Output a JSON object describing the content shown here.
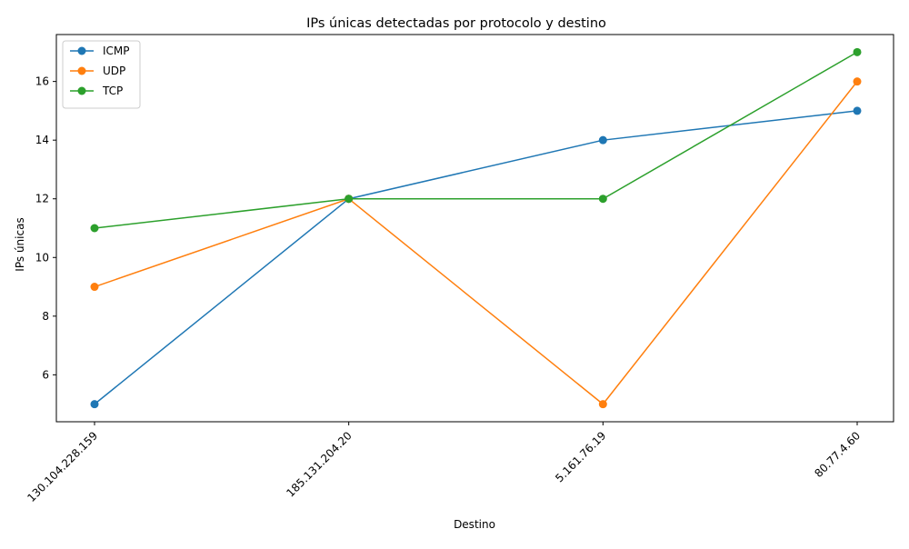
{
  "chart_data": {
    "type": "line",
    "title": "IPs únicas detectadas por protocolo y destino",
    "xlabel": "Destino",
    "ylabel": "IPs únicas",
    "categories": [
      "130.104.228.159",
      "185.131.204.20",
      "5.161.76.19",
      "80.77.4.60"
    ],
    "ylim": [
      4.4,
      17.6
    ],
    "yticks": [
      6,
      8,
      10,
      12,
      14,
      16
    ],
    "grid": false,
    "legend_position": "top-left",
    "series": [
      {
        "name": "ICMP",
        "color": "#1f77b4",
        "values": [
          5,
          12,
          14,
          15
        ]
      },
      {
        "name": "UDP",
        "color": "#ff7f0e",
        "values": [
          9,
          12,
          5,
          16
        ]
      },
      {
        "name": "TCP",
        "color": "#2ca02c",
        "values": [
          11,
          12,
          12,
          17
        ]
      }
    ]
  }
}
